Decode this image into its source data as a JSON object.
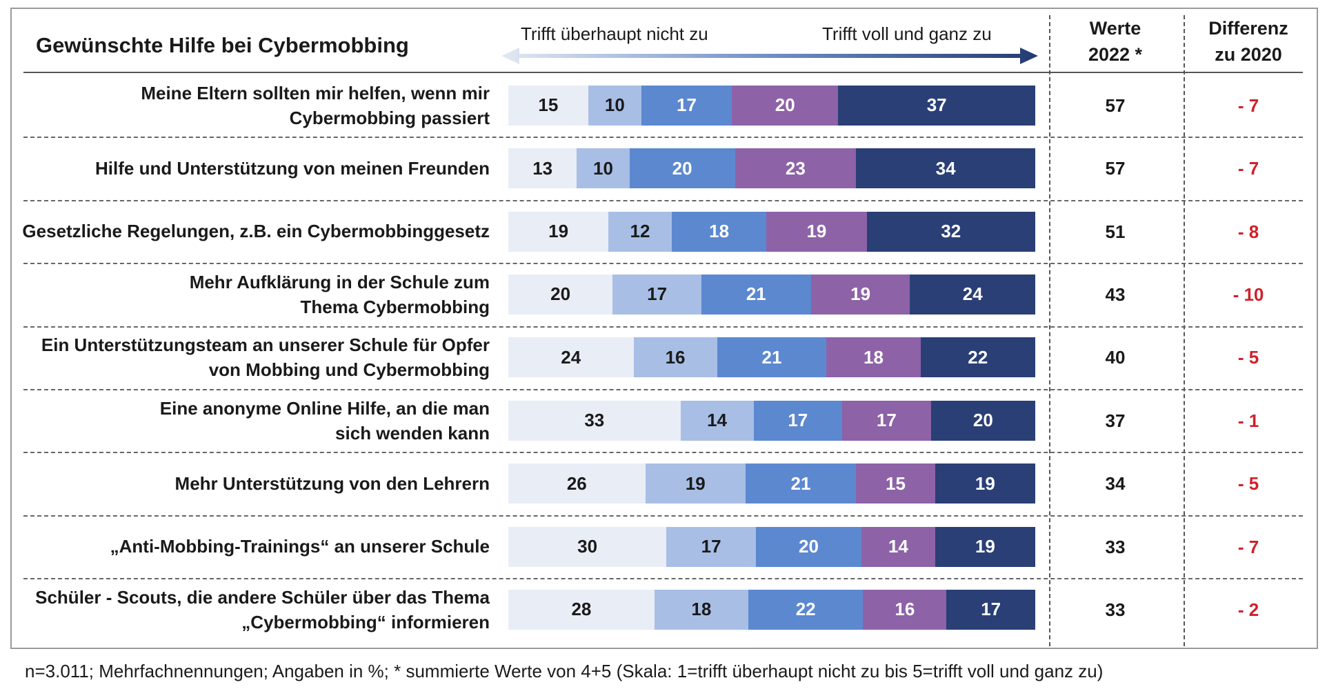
{
  "title": "Gewünschte Hilfe bei Cybermobbing",
  "scale": {
    "low_label": "Trifft überhaupt nicht zu",
    "high_label": "Trifft voll und ganz zu"
  },
  "columns": {
    "werte_line1": "Werte",
    "werte_line2": "2022 *",
    "diff_line1": "Differenz",
    "diff_line2": "zu 2020"
  },
  "colors": {
    "levels": [
      "#e9edf6",
      "#a8bee5",
      "#5c88d0",
      "#8d62a7",
      "#2a3f75"
    ],
    "level_text": [
      "#1a1a1a",
      "#1a1a1a",
      "#ffffff",
      "#ffffff",
      "#ffffff"
    ],
    "diff_text": "#d0202a"
  },
  "chart_data": {
    "type": "bar",
    "stacked": true,
    "orientation": "horizontal",
    "title": "Gewünschte Hilfe bei Cybermobbing",
    "categories": [
      "Meine Eltern sollten mir helfen, wenn mir Cybermobbing passiert",
      "Hilfe und Unterstützung von meinen Freunden",
      "Gesetzliche Regelungen, z.B. ein Cybermobbinggesetz",
      "Mehr Aufklärung in der Schule zum Thema Cybermobbing",
      "Ein Unterstützungsteam an unserer Schule für Opfer von Mobbing und Cybermobbing",
      "Eine anonyme Online Hilfe, an die man sich wenden kann",
      "Mehr Unterstützung von den Lehrern",
      "„Anti-Mobbing-Trainings“ an unserer Schule",
      "Schüler - Scouts, die andere Schüler über das Thema „Cybermobbing“ informieren"
    ],
    "label_lines": [
      [
        "Meine Eltern sollten mir helfen, wenn mir",
        "Cybermobbing passiert"
      ],
      [
        "Hilfe und Unterstützung von meinen Freunden"
      ],
      [
        "Gesetzliche Regelungen, z.B. ein Cybermobbinggesetz"
      ],
      [
        "Mehr Aufklärung in der Schule zum",
        "Thema Cybermobbing"
      ],
      [
        "Ein Unterstützungsteam an unserer Schule für Opfer",
        "von Mobbing und Cybermobbing"
      ],
      [
        "Eine anonyme Online Hilfe, an die man",
        "sich wenden kann"
      ],
      [
        "Mehr Unterstützung von den Lehrern"
      ],
      [
        "„Anti-Mobbing-Trainings“ an unserer Schule"
      ],
      [
        "Schüler - Scouts, die andere Schüler über das Thema",
        "„Cybermobbing“ informieren"
      ]
    ],
    "values": [
      [
        15,
        10,
        17,
        20,
        37
      ],
      [
        13,
        10,
        20,
        23,
        34
      ],
      [
        19,
        12,
        18,
        19,
        32
      ],
      [
        20,
        17,
        21,
        19,
        24
      ],
      [
        24,
        16,
        21,
        18,
        22
      ],
      [
        33,
        14,
        17,
        17,
        20
      ],
      [
        26,
        19,
        21,
        15,
        19
      ],
      [
        30,
        17,
        20,
        14,
        19
      ],
      [
        28,
        18,
        22,
        16,
        17
      ]
    ],
    "werte_2022": [
      "57",
      "57",
      "51",
      "43",
      "40",
      "37",
      "34",
      "33",
      "33"
    ],
    "differenz_2020": [
      "- 7",
      "- 7",
      "- 8",
      "- 10",
      "- 5",
      "- 1",
      "- 5",
      "- 7",
      "- 2"
    ],
    "xlim": [
      0,
      100
    ]
  },
  "footnote": "n=3.011; Mehrfachnennungen; Angaben in %; * summierte Werte von 4+5 (Skala: 1=trifft überhaupt nicht zu bis 5=trifft voll und ganz zu)"
}
